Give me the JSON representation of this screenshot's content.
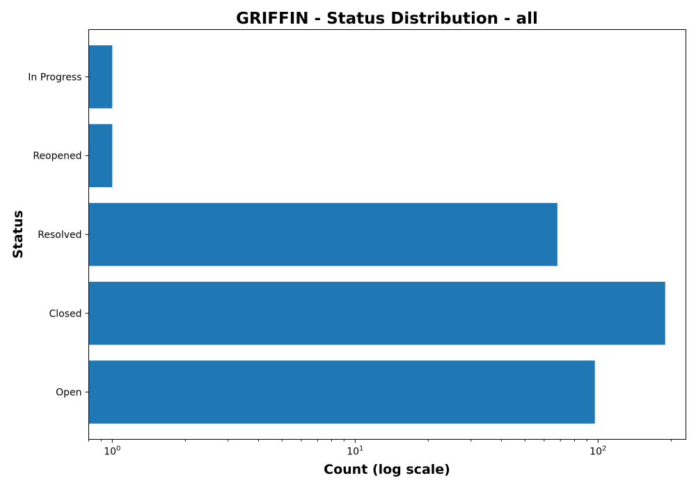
{
  "chart_data": {
    "type": "bar",
    "orientation": "horizontal",
    "title": "GRIFFIN - Status Distribution - all",
    "xlabel": "Count (log scale)",
    "ylabel": "Status",
    "x_scale": "log",
    "xlim": [
      0.8,
      230
    ],
    "x_ticks": [
      {
        "value": 1,
        "base": "10",
        "exp": "0"
      },
      {
        "value": 10,
        "base": "10",
        "exp": "1"
      },
      {
        "value": 100,
        "base": "10",
        "exp": "2"
      }
    ],
    "categories": [
      "In Progress",
      "Reopened",
      "Resolved",
      "Closed",
      "Open"
    ],
    "values": [
      1,
      1,
      68,
      189,
      97
    ],
    "bar_color": "#1f77b4",
    "grid": false,
    "legend": "none"
  }
}
